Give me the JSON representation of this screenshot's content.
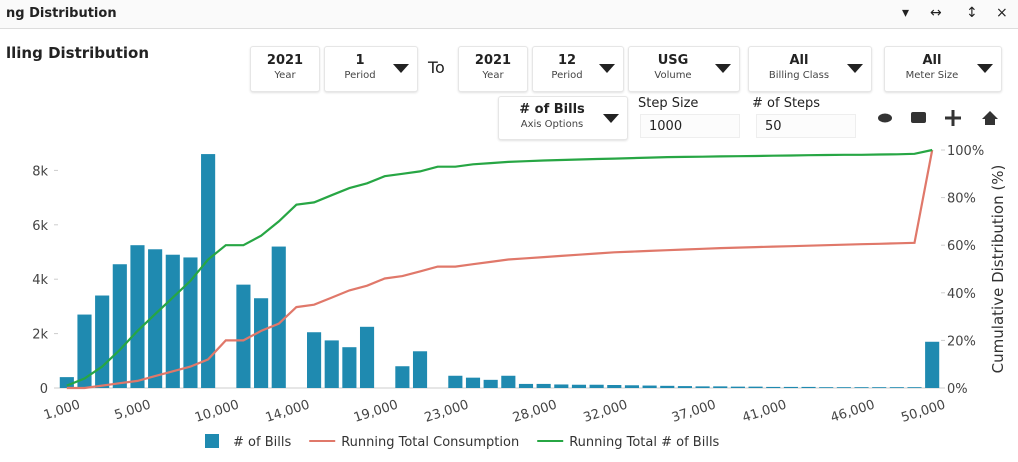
{
  "header": {
    "title": "ng Distribution",
    "window_controls": [
      "▾",
      "↔",
      "↕",
      "×"
    ]
  },
  "panel_title": "lling Distribution",
  "controls": [
    {
      "value": "2021",
      "label": "Year"
    },
    {
      "value": "1",
      "label": "Period"
    },
    {
      "value": "2021",
      "label": "Year"
    },
    {
      "value": "12",
      "label": "Period"
    },
    {
      "value": "USG",
      "label": "Volume"
    },
    {
      "value": "All",
      "label": "Billing Class"
    },
    {
      "value": "All",
      "label": "Meter Size"
    }
  ],
  "to_label": "To",
  "axis_options": {
    "value": "# of Bills",
    "label": "Axis Options"
  },
  "step_size": {
    "label": "Step Size",
    "value": "1000"
  },
  "num_steps": {
    "label": "# of Steps",
    "value": "50"
  },
  "chart_data": {
    "type": "bar_line",
    "y2_label": "Cumulative Distribution (%)",
    "categories": [
      "1,000",
      null,
      null,
      null,
      "5,000",
      null,
      null,
      null,
      null,
      "10,000",
      null,
      null,
      null,
      "14,000",
      null,
      null,
      null,
      null,
      "19,000",
      null,
      null,
      null,
      "23,000",
      null,
      null,
      null,
      null,
      "28,000",
      null,
      null,
      null,
      "32,000",
      null,
      null,
      null,
      null,
      "37,000",
      null,
      null,
      null,
      "41,000",
      null,
      null,
      null,
      null,
      "46,000",
      null,
      null,
      null,
      "50,000"
    ],
    "series": [
      {
        "name": "# of Bills",
        "color": "#1f8ab0",
        "kind": "bar",
        "values": [
          400,
          2700,
          3400,
          4550,
          5250,
          5100,
          4900,
          4800,
          8600,
          0,
          3800,
          3300,
          5200,
          0,
          2050,
          1750,
          1500,
          2250,
          0,
          800,
          1350,
          0,
          450,
          380,
          300,
          450,
          150,
          150,
          130,
          120,
          120,
          110,
          100,
          90,
          80,
          70,
          60,
          60,
          50,
          50,
          40,
          40,
          40,
          30,
          30,
          30,
          30,
          30,
          30,
          1700
        ]
      },
      {
        "name": "Running Total Consumption",
        "color": "#e0786a",
        "kind": "line",
        "axis": "y2",
        "values": [
          0,
          0,
          1,
          2,
          3,
          5,
          7,
          9,
          12,
          20,
          20,
          24,
          27,
          34,
          35,
          38,
          41,
          43,
          46,
          47,
          49,
          51,
          51,
          52,
          53,
          54,
          54.5,
          55,
          55.5,
          56,
          56.5,
          57,
          57.3,
          57.6,
          57.9,
          58.2,
          58.5,
          58.8,
          59,
          59.2,
          59.4,
          59.6,
          59.8,
          60,
          60.2,
          60.4,
          60.6,
          60.8,
          61,
          100
        ]
      },
      {
        "name": "Running Total # of Bills",
        "color": "#27a644",
        "kind": "line",
        "axis": "y2",
        "values": [
          1,
          4,
          9,
          16,
          24,
          31,
          38,
          45,
          54,
          60,
          60,
          64,
          70,
          77,
          78,
          81,
          84,
          86,
          89,
          90,
          91,
          93,
          93,
          94,
          94.5,
          95,
          95.3,
          95.6,
          95.8,
          96,
          96.2,
          96.4,
          96.6,
          96.8,
          97,
          97.1,
          97.2,
          97.3,
          97.4,
          97.5,
          97.6,
          97.7,
          97.8,
          97.9,
          98,
          98,
          98.1,
          98.2,
          98.4,
          100
        ]
      }
    ],
    "ylim": [
      0,
      8750
    ],
    "yticks": [
      0,
      {
        "value": 2000,
        "label": "2k"
      },
      {
        "value": 4000,
        "label": "4k"
      },
      {
        "value": 6000,
        "label": "6k"
      },
      {
        "value": 8000,
        "label": "8k"
      }
    ],
    "y2lim": [
      0,
      100
    ],
    "y2ticks": [
      {
        "value": 0,
        "label": "0%"
      },
      {
        "value": 20,
        "label": "20%"
      },
      {
        "value": 40,
        "label": "40%"
      },
      {
        "value": 60,
        "label": "60%"
      },
      {
        "value": 80,
        "label": "80%"
      },
      {
        "value": 100,
        "label": "100%"
      }
    ],
    "legend": "bottom"
  }
}
